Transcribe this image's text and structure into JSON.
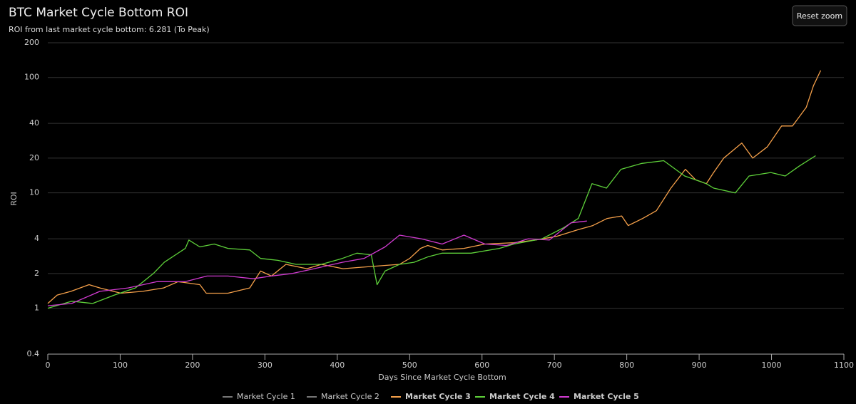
{
  "button": {
    "label": "Reset zoom"
  },
  "chart_data": {
    "type": "line",
    "title": "BTC Market Cycle Bottom ROI",
    "subtitle": "ROI from last market cycle bottom: 6.281 (To Peak)",
    "x_label": "Days Since Market Cycle Bottom",
    "y_label": "ROI",
    "xlim": [
      0,
      1100
    ],
    "xticks": [
      0,
      100,
      200,
      300,
      400,
      500,
      600,
      700,
      800,
      900,
      1000,
      1100
    ],
    "ylim": [
      0.4,
      200
    ],
    "yticks": [
      0.4,
      1,
      2,
      4,
      10,
      20,
      40,
      100,
      200
    ],
    "ylog": true,
    "grid": true,
    "legend": "bottom",
    "series": [
      {
        "name": "Market Cycle 1",
        "color": "#888888",
        "visible": false
      },
      {
        "name": "Market Cycle 2",
        "color": "#888888",
        "visible": false
      },
      {
        "name": "Market Cycle 3",
        "color": "#f5a04a",
        "visible": true,
        "x": [
          0,
          13,
          32,
          57,
          72,
          101,
          131,
          160,
          180,
          210,
          219,
          249,
          279,
          294,
          309,
          329,
          358,
          378,
          408,
          447,
          486,
          500,
          515,
          525,
          545,
          575,
          604,
          644,
          674,
          703,
          733,
          753,
          773,
          793,
          802,
          822,
          841,
          861,
          881,
          895,
          910,
          920,
          934,
          959,
          974,
          994,
          1014,
          1029,
          1048,
          1058,
          1068
        ],
        "values": [
          1.1,
          1.3,
          1.4,
          1.6,
          1.5,
          1.35,
          1.4,
          1.5,
          1.7,
          1.6,
          1.35,
          1.35,
          1.5,
          2.1,
          1.9,
          2.4,
          2.2,
          2.4,
          2.2,
          2.3,
          2.4,
          2.7,
          3.3,
          3.5,
          3.2,
          3.3,
          3.6,
          3.7,
          3.9,
          4.2,
          4.8,
          5.2,
          6.0,
          6.3,
          5.2,
          6.0,
          7.0,
          11,
          16,
          13,
          12,
          15,
          20,
          27,
          20,
          25,
          38,
          38,
          55,
          85,
          115
        ]
      },
      {
        "name": "Market Cycle 4",
        "color": "#5ed13a",
        "visible": true,
        "x": [
          0,
          33,
          62,
          92,
          121,
          146,
          161,
          190,
          195,
          210,
          230,
          249,
          279,
          294,
          318,
          343,
          378,
          407,
          427,
          447,
          455,
          466,
          486,
          506,
          526,
          545,
          565,
          585,
          624,
          644,
          683,
          713,
          733,
          752,
          772,
          792,
          821,
          851,
          880,
          910,
          920,
          950,
          969,
          999,
          1019,
          1038,
          1061
        ],
        "values": [
          1.0,
          1.15,
          1.1,
          1.3,
          1.5,
          2.0,
          2.5,
          3.3,
          3.9,
          3.4,
          3.6,
          3.3,
          3.2,
          2.7,
          2.6,
          2.4,
          2.4,
          2.7,
          3.0,
          2.9,
          1.6,
          2.1,
          2.4,
          2.5,
          2.8,
          3.0,
          3.0,
          3.0,
          3.3,
          3.6,
          4.0,
          5.0,
          6.0,
          12,
          11,
          16,
          18,
          19,
          14,
          12,
          11,
          10,
          14,
          15,
          14,
          17,
          21
        ]
      },
      {
        "name": "Market Cycle 5",
        "color": "#d23bd2",
        "visible": true,
        "x": [
          0,
          33,
          72,
          111,
          151,
          190,
          220,
          249,
          284,
          309,
          338,
          368,
          407,
          437,
          466,
          486,
          516,
          545,
          575,
          604,
          634,
          664,
          693,
          723,
          745
        ],
        "values": [
          1.05,
          1.1,
          1.4,
          1.5,
          1.7,
          1.7,
          1.9,
          1.9,
          1.8,
          1.9,
          2.0,
          2.2,
          2.5,
          2.7,
          3.4,
          4.3,
          4.0,
          3.6,
          4.3,
          3.6,
          3.5,
          4.0,
          3.9,
          5.5,
          5.7
        ]
      }
    ]
  }
}
